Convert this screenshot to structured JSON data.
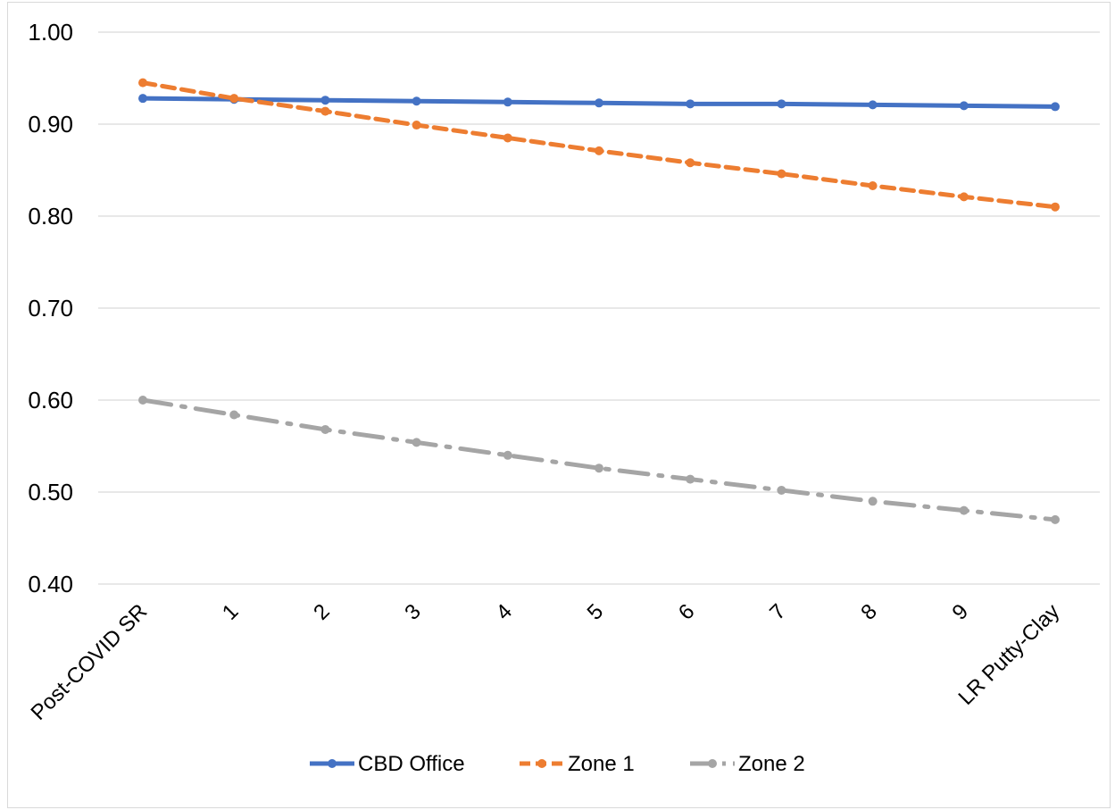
{
  "chart_data": {
    "type": "line",
    "categories": [
      "Post-COVID SR",
      "1",
      "2",
      "3",
      "4",
      "5",
      "6",
      "7",
      "8",
      "9",
      "LR Putty-Clay"
    ],
    "y_ticks": [
      "0.40",
      "0.50",
      "0.60",
      "0.70",
      "0.80",
      "0.90",
      "1.00"
    ],
    "ylim": [
      0.4,
      1.0
    ],
    "grid": "horizontal",
    "legend_position": "bottom",
    "series": [
      {
        "name": "CBD Office",
        "color": "#4472C4",
        "style": "solid",
        "values": [
          0.928,
          0.927,
          0.926,
          0.925,
          0.924,
          0.923,
          0.922,
          0.922,
          0.921,
          0.92,
          0.919
        ]
      },
      {
        "name": "Zone 1",
        "color": "#ED7D31",
        "style": "dash",
        "values": [
          0.945,
          0.928,
          0.914,
          0.899,
          0.885,
          0.871,
          0.858,
          0.846,
          0.833,
          0.821,
          0.81
        ]
      },
      {
        "name": "Zone 2",
        "color": "#A5A5A5",
        "style": "dash-dot",
        "values": [
          0.6,
          0.584,
          0.568,
          0.554,
          0.54,
          0.526,
          0.514,
          0.502,
          0.49,
          0.48,
          0.47
        ]
      }
    ]
  }
}
